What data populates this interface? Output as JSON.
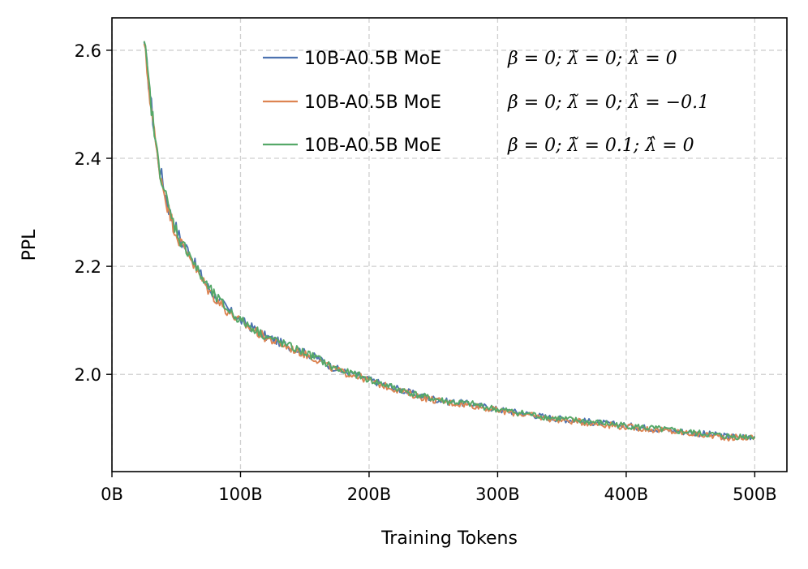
{
  "chart_data": {
    "type": "line",
    "title": "",
    "xlabel": "Training Tokens",
    "ylabel": "PPL",
    "xlim": [
      0,
      525
    ],
    "ylim": [
      1.82,
      2.66
    ],
    "xticks": [
      0,
      100,
      200,
      300,
      400,
      500
    ],
    "xtick_labels": [
      "0B",
      "100B",
      "200B",
      "300B",
      "400B",
      "500B"
    ],
    "yticks": [
      2.0,
      2.2,
      2.4,
      2.6
    ],
    "ytick_labels": [
      "2.0",
      "2.2",
      "2.4",
      "2.6"
    ],
    "grid": true,
    "legend_position": "top-right",
    "series": [
      {
        "name": "10B-A0.5B MoE",
        "legend_math": "β = 0;  λ̃ = 0;  λ̂ = 0",
        "color": "#4c72b0",
        "x": [
          25,
          30,
          35,
          40,
          45,
          50,
          55,
          60,
          65,
          70,
          75,
          80,
          90,
          100,
          110,
          120,
          130,
          140,
          150,
          160,
          170,
          180,
          190,
          200,
          220,
          240,
          260,
          280,
          300,
          320,
          340,
          360,
          380,
          400,
          420,
          440,
          460,
          480,
          500
        ],
        "y": [
          2.615,
          2.51,
          2.41,
          2.35,
          2.3,
          2.27,
          2.24,
          2.23,
          2.2,
          2.18,
          2.16,
          2.145,
          2.12,
          2.1,
          2.085,
          2.07,
          2.06,
          2.05,
          2.04,
          2.03,
          2.015,
          2.005,
          2.0,
          1.99,
          1.975,
          1.96,
          1.95,
          1.945,
          1.935,
          1.928,
          1.92,
          1.915,
          1.91,
          1.905,
          1.9,
          1.895,
          1.89,
          1.885,
          1.885
        ]
      },
      {
        "name": "10B-A0.5B MoE",
        "legend_math": "β = 0;  λ̃ = 0;  λ̂ = −0.1",
        "color": "#dd8452",
        "x": [
          25,
          30,
          35,
          40,
          45,
          50,
          55,
          60,
          65,
          70,
          75,
          80,
          90,
          100,
          110,
          120,
          130,
          140,
          150,
          160,
          170,
          180,
          190,
          200,
          220,
          240,
          260,
          280,
          300,
          320,
          340,
          360,
          380,
          400,
          420,
          440,
          460,
          480,
          500
        ],
        "y": [
          2.612,
          2.505,
          2.405,
          2.345,
          2.295,
          2.262,
          2.235,
          2.225,
          2.195,
          2.175,
          2.157,
          2.142,
          2.117,
          2.097,
          2.082,
          2.067,
          2.057,
          2.047,
          2.037,
          2.027,
          2.013,
          2.003,
          1.998,
          1.988,
          1.973,
          1.958,
          1.948,
          1.943,
          1.933,
          1.926,
          1.918,
          1.913,
          1.908,
          1.903,
          1.898,
          1.893,
          1.888,
          1.883,
          1.883
        ]
      },
      {
        "name": "10B-A0.5B MoE",
        "legend_math": "β = 0;  λ̃ = 0.1;  λ̂ = 0",
        "color": "#55a868",
        "x": [
          25,
          30,
          35,
          40,
          45,
          50,
          55,
          60,
          65,
          70,
          75,
          80,
          90,
          100,
          110,
          120,
          130,
          140,
          150,
          160,
          170,
          180,
          190,
          200,
          220,
          240,
          260,
          280,
          300,
          320,
          340,
          360,
          380,
          400,
          420,
          440,
          460,
          480,
          500
        ],
        "y": [
          2.617,
          2.508,
          2.408,
          2.348,
          2.298,
          2.268,
          2.238,
          2.228,
          2.198,
          2.178,
          2.16,
          2.145,
          2.12,
          2.1,
          2.085,
          2.07,
          2.06,
          2.05,
          2.04,
          2.03,
          2.015,
          2.005,
          2.0,
          1.99,
          1.975,
          1.96,
          1.95,
          1.945,
          1.935,
          1.928,
          1.92,
          1.915,
          1.91,
          1.905,
          1.9,
          1.895,
          1.89,
          1.885,
          1.885
        ]
      }
    ]
  }
}
